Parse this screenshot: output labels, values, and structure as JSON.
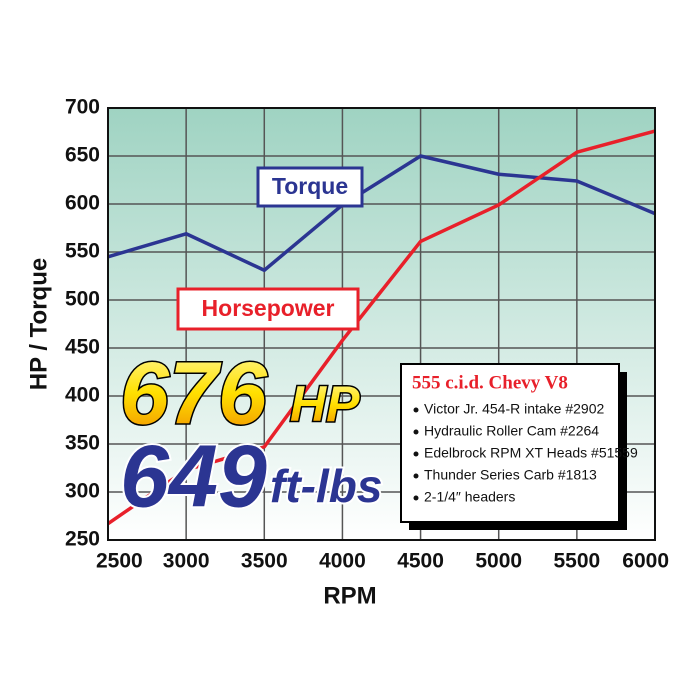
{
  "chart_data": {
    "type": "line",
    "x_label": "RPM",
    "y_label": "HP / Torque",
    "x": [
      2500,
      3000,
      3500,
      4000,
      4500,
      5000,
      5500,
      6000
    ],
    "series": [
      {
        "name": "Torque",
        "color": "#2b3592",
        "values": [
          545,
          569,
          531,
          599,
          650,
          631,
          624,
          590
        ]
      },
      {
        "name": "Horsepower",
        "color": "#e8202a",
        "values": [
          267,
          323,
          347,
          458,
          561,
          599,
          654,
          676
        ]
      }
    ],
    "xlim": [
      2500,
      6000
    ],
    "xticks": [
      2500,
      3000,
      3500,
      4000,
      4500,
      5000,
      5500,
      6000
    ],
    "ylim": [
      250,
      700
    ],
    "yticks": [
      250,
      300,
      350,
      400,
      450,
      500,
      550,
      600,
      650,
      700
    ],
    "grid": true,
    "callouts": [
      {
        "value": "676",
        "unit": "HP"
      },
      {
        "value": "649",
        "unit": "ft-lbs"
      }
    ],
    "spec_box": {
      "title": "555 c.i.d. Chevy V8",
      "items": [
        "Victor Jr. 454-R intake #2902",
        "Hydraulic Roller Cam #2264",
        "Edelbrock RPM XT Heads #51559",
        "Thunder Series Carb #1813",
        "2-1/4″ headers"
      ]
    }
  }
}
